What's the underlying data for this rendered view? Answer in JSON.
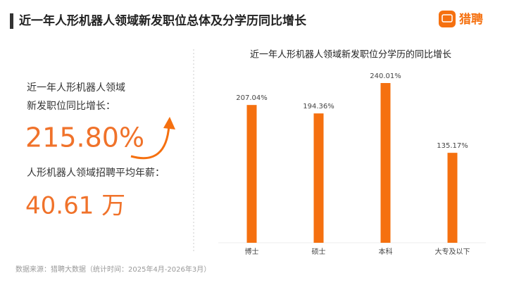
{
  "header": {
    "title": "近一年人形机器人领域新发职位总体及分学历同比增长",
    "logo": "猎聘"
  },
  "summary": {
    "growth_label": [
      "近一年人形机器人领域",
      "新发职位同比增长："
    ],
    "growth_value": "215.80%",
    "salary_label": "人形机器人领域招聘平均年薪：",
    "salary_value": "40.61 万"
  },
  "chart_data": {
    "type": "bar",
    "title": "近一年人形机器人领域新发职位分学历的同比增长",
    "categories": [
      "博士",
      "硕士",
      "本科",
      "大专及以下"
    ],
    "values": [
      207.04,
      194.36,
      240.01,
      135.17
    ],
    "value_labels": [
      "207.04%",
      "194.36%",
      "240.01%",
      "135.17%"
    ],
    "color": "#f5700f"
  },
  "footer": {
    "source": "数据来源：猎聘大数据（统计时间：2025年4月-2026年3月）"
  }
}
